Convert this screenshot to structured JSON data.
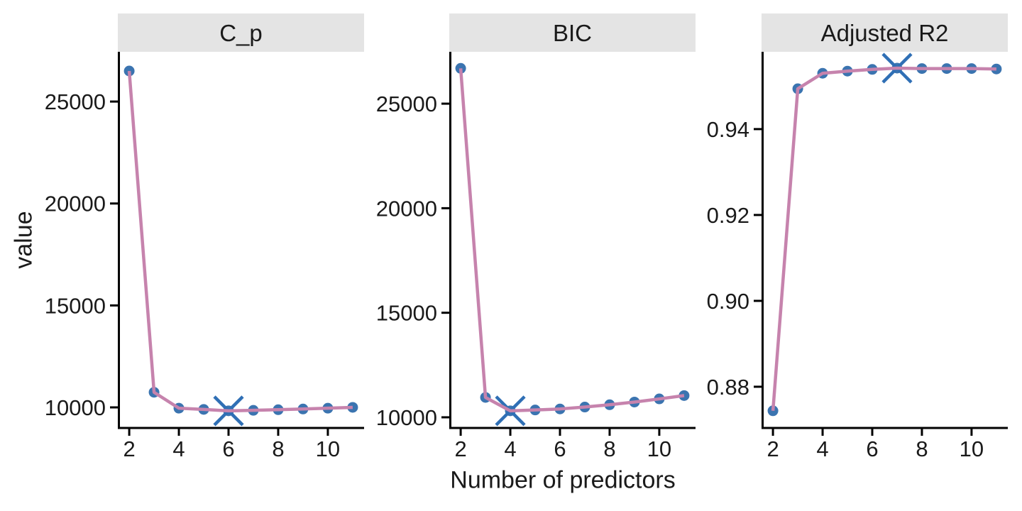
{
  "style": {
    "background": "#ffffff",
    "strip_bg": "#e4e4e4",
    "strip_text_color": "#1a1a1a",
    "axis_color": "#000000",
    "tick_text_color": "#1a1a1a",
    "line_color": "#c683ad",
    "point_color": "#3b74b0",
    "marker_color": "#2f6fb5"
  },
  "chart_data": {
    "type": "line",
    "xlabel": "Number of predictors",
    "ylabel": "value",
    "grid": false,
    "legend": "none",
    "x": [
      2,
      3,
      4,
      5,
      6,
      7,
      8,
      9,
      10,
      11
    ],
    "x_ticks": [
      2,
      4,
      6,
      8,
      10
    ],
    "xlim": [
      1.54,
      11.46
    ],
    "facets": [
      {
        "label": "C_p",
        "values": [
          26500,
          10740,
          9960,
          9900,
          9830,
          9855,
          9885,
          9920,
          9960,
          10000
        ],
        "best_x": 6,
        "y_ticks": [
          10000,
          15000,
          20000,
          25000
        ],
        "y_tick_labels": [
          "10000",
          "15000",
          "20000",
          "25000"
        ],
        "ylim": [
          8990,
          27440
        ]
      },
      {
        "label": "BIC",
        "values": [
          26690,
          10950,
          10310,
          10350,
          10400,
          10490,
          10600,
          10730,
          10880,
          11040
        ],
        "best_x": 4,
        "y_ticks": [
          10000,
          15000,
          20000,
          25000
        ],
        "y_tick_labels": [
          "10000",
          "15000",
          "20000",
          "25000"
        ],
        "ylim": [
          9490,
          27480
        ]
      },
      {
        "label": "Adjusted R2",
        "values": [
          0.8744,
          0.9494,
          0.953,
          0.9535,
          0.9539,
          0.9542,
          0.9541,
          0.9541,
          0.9541,
          0.954
        ],
        "best_x": 7,
        "y_ticks": [
          0.88,
          0.9,
          0.92,
          0.94
        ],
        "y_tick_labels": [
          "0.88",
          "0.90",
          "0.92",
          "0.94"
        ],
        "ylim": [
          0.8704,
          0.958
        ]
      }
    ]
  }
}
